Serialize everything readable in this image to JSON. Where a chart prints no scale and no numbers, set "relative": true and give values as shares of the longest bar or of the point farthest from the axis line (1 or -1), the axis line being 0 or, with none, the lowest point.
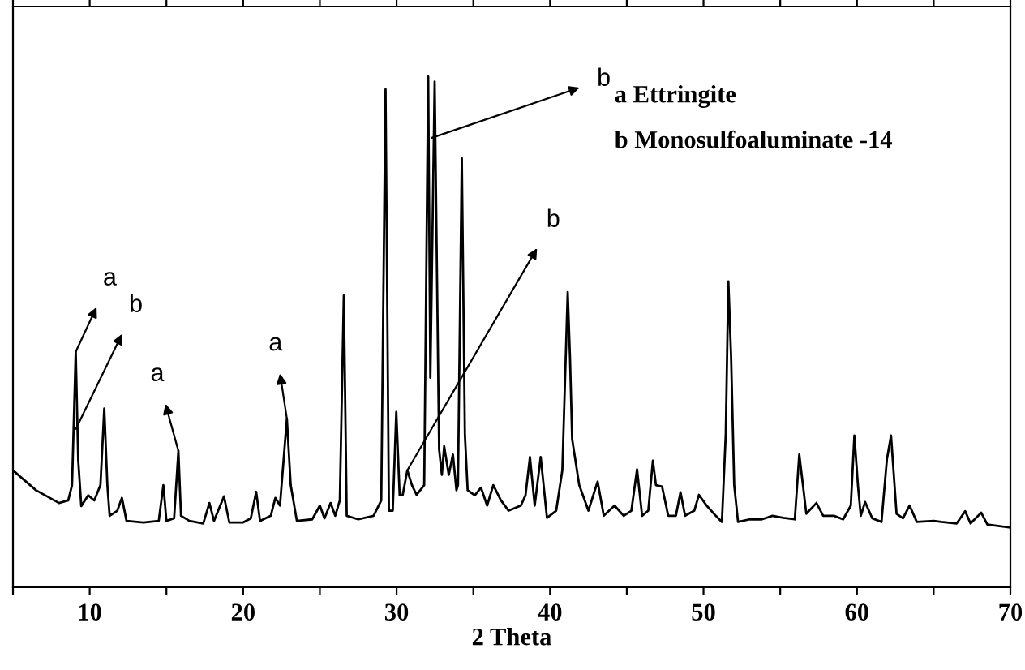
{
  "chart_data": {
    "type": "line",
    "xlabel": "2 Theta",
    "relative": true,
    "color": "#000000",
    "xlim": [
      5,
      70
    ],
    "xticks": [
      {
        "value": 5,
        "label": null
      },
      10,
      {
        "value": 15,
        "label": null
      },
      20,
      {
        "value": 25,
        "label": null
      },
      30,
      {
        "value": 35,
        "label": null
      },
      40,
      {
        "value": 45,
        "label": null
      },
      50,
      {
        "value": 55,
        "label": null
      },
      60,
      {
        "value": 65,
        "label": null
      },
      70
    ],
    "tick_labels": "x",
    "grid": false,
    "legend": false,
    "marker": "none",
    "line_style": "solid",
    "x": [
      5,
      6.5,
      8.0,
      8.6,
      8.85,
      9.09,
      9.25,
      9.45,
      9.9,
      10.3,
      10.7,
      10.95,
      11.15,
      11.3,
      11.8,
      12.1,
      12.4,
      13.5,
      14.5,
      14.8,
      15.0,
      15.5,
      15.78,
      15.95,
      16.5,
      17.4,
      17.8,
      18.1,
      18.75,
      19.1,
      20.0,
      20.5,
      20.85,
      21.1,
      21.8,
      22.1,
      22.4,
      22.85,
      23.1,
      23.5,
      24.5,
      25.0,
      25.3,
      25.7,
      26.0,
      26.3,
      26.56,
      26.75,
      27.5,
      28.5,
      29.0,
      29.28,
      29.5,
      29.75,
      29.98,
      30.2,
      30.4,
      30.7,
      31.0,
      31.3,
      31.8,
      32.06,
      32.2,
      32.48,
      32.77,
      32.95,
      33.1,
      33.4,
      33.67,
      33.9,
      34.0,
      34.25,
      34.45,
      34.63,
      35.1,
      35.5,
      35.9,
      36.3,
      36.8,
      37.3,
      38.1,
      38.4,
      38.69,
      39.0,
      39.39,
      39.8,
      40.4,
      40.8,
      41.15,
      41.3,
      41.44,
      41.9,
      42.5,
      43.1,
      43.5,
      44.2,
      44.8,
      45.3,
      45.67,
      46.0,
      46.4,
      46.7,
      46.9,
      47.3,
      47.7,
      48.2,
      48.5,
      48.8,
      49.4,
      49.7,
      50.2,
      50.8,
      51.2,
      51.45,
      51.62,
      51.8,
      52.0,
      52.25,
      53.0,
      53.8,
      54.5,
      55.2,
      55.95,
      56.24,
      56.4,
      56.7,
      57.36,
      57.8,
      58.5,
      59.1,
      59.6,
      59.83,
      60.07,
      60.25,
      60.53,
      61.0,
      61.6,
      61.95,
      62.22,
      62.58,
      63.0,
      63.43,
      63.9,
      65.0,
      65.5,
      66.5,
      67.05,
      67.4,
      68.1,
      68.5,
      69.2,
      70
    ],
    "values": [
      0.229,
      0.19,
      0.165,
      0.17,
      0.2,
      0.461,
      0.25,
      0.159,
      0.18,
      0.17,
      0.2,
      0.35,
      0.2,
      0.14,
      0.15,
      0.175,
      0.13,
      0.127,
      0.13,
      0.2,
      0.13,
      0.135,
      0.267,
      0.14,
      0.13,
      0.125,
      0.165,
      0.13,
      0.178,
      0.127,
      0.127,
      0.135,
      0.187,
      0.13,
      0.14,
      0.175,
      0.16,
      0.33,
      0.2,
      0.13,
      0.133,
      0.16,
      0.135,
      0.165,
      0.14,
      0.17,
      0.571,
      0.14,
      0.133,
      0.14,
      0.17,
      0.975,
      0.15,
      0.15,
      0.343,
      0.18,
      0.181,
      0.229,
      0.2,
      0.181,
      0.2,
      1.0,
      0.41,
      0.99,
      0.27,
      0.22,
      0.276,
      0.22,
      0.26,
      0.19,
      0.2,
      0.84,
      0.3,
      0.19,
      0.18,
      0.195,
      0.16,
      0.2,
      0.17,
      0.15,
      0.16,
      0.18,
      0.255,
      0.16,
      0.255,
      0.136,
      0.15,
      0.229,
      0.578,
      0.45,
      0.29,
      0.2,
      0.15,
      0.207,
      0.14,
      0.16,
      0.14,
      0.15,
      0.231,
      0.14,
      0.15,
      0.248,
      0.2,
      0.197,
      0.14,
      0.14,
      0.186,
      0.14,
      0.15,
      0.181,
      0.16,
      0.14,
      0.128,
      0.3,
      0.599,
      0.45,
      0.2,
      0.128,
      0.133,
      0.133,
      0.14,
      0.136,
      0.133,
      0.26,
      0.22,
      0.144,
      0.165,
      0.14,
      0.14,
      0.133,
      0.16,
      0.297,
      0.197,
      0.14,
      0.167,
      0.135,
      0.128,
      0.25,
      0.297,
      0.144,
      0.135,
      0.16,
      0.128,
      0.13,
      0.128,
      0.125,
      0.149,
      0.125,
      0.146,
      0.123,
      0.12,
      0.117
    ],
    "annotations": [
      {
        "text": "a",
        "x": 9.09,
        "y": 0.461
      },
      {
        "text": "b",
        "x": 9.1,
        "y": 0.31
      },
      {
        "text": "a",
        "x": 15.78,
        "y": 0.267
      },
      {
        "text": "a",
        "x": 22.85,
        "y": 0.33
      },
      {
        "text": "b",
        "x": 32.3,
        "y": 0.88
      },
      {
        "text": "b",
        "x": 30.7,
        "y": 0.229
      },
      "a Ettringite",
      "b Monosulfoaluminate -14"
    ]
  }
}
